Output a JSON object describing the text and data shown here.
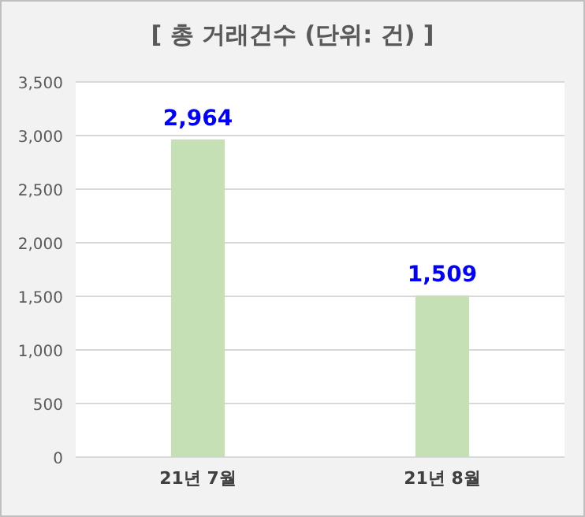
{
  "chart_data": {
    "type": "bar",
    "title": "[ 총 거래건수 (단위: 건) ]",
    "categories": [
      "21년 7월",
      "21년 8월"
    ],
    "values": [
      2964,
      1509
    ],
    "value_labels": [
      "2,964",
      "1,509"
    ],
    "color": "#c5e0b4",
    "ylim": [
      0,
      3500
    ],
    "yticks": [
      0,
      500,
      {
        "value": 1000,
        "label": "1,000"
      },
      {
        "value": 1500,
        "label": "1,500"
      },
      {
        "value": 2000,
        "label": "2,000"
      },
      {
        "value": 2500,
        "label": "2,500"
      },
      {
        "value": 3000,
        "label": "3,000"
      },
      {
        "value": 3500,
        "label": "3,500"
      }
    ],
    "grid": "y"
  }
}
